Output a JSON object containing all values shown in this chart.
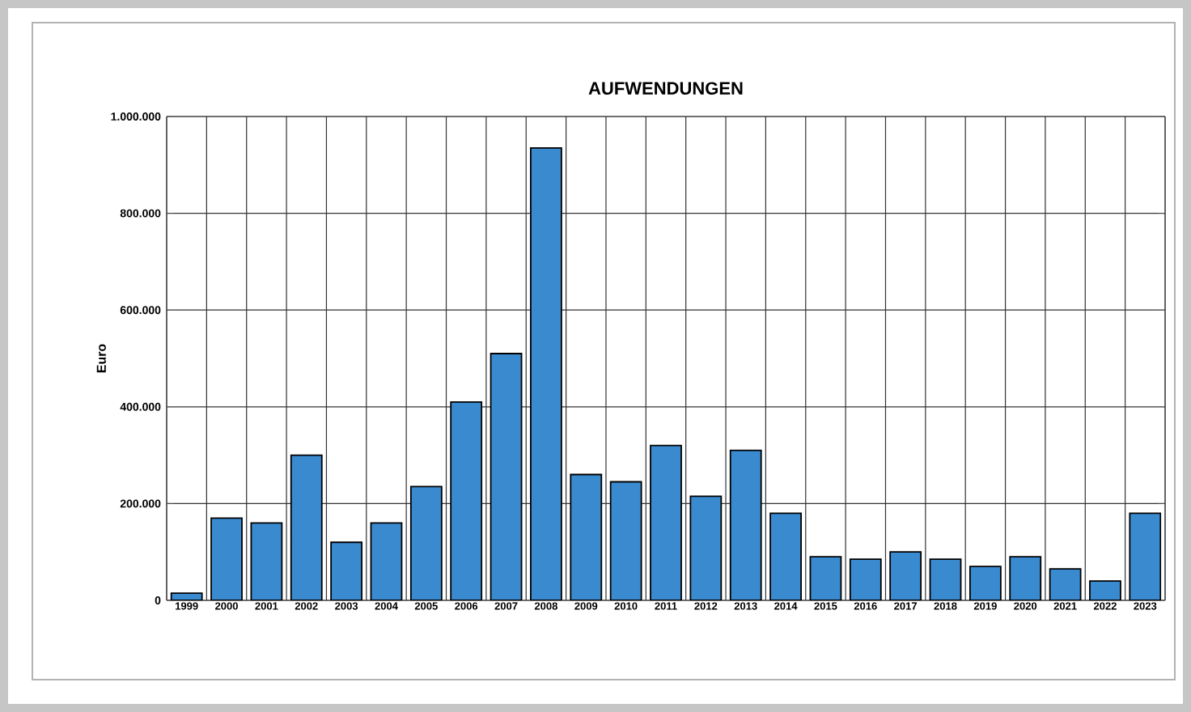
{
  "chart_data": {
    "type": "bar",
    "title": "AUFWENDUNGEN",
    "ylabel": "Euro",
    "categories": [
      "1999",
      "2000",
      "2001",
      "2002",
      "2003",
      "2004",
      "2005",
      "2006",
      "2007",
      "2008",
      "2009",
      "2010",
      "2011",
      "2012",
      "2013",
      "2014",
      "2015",
      "2016",
      "2017",
      "2018",
      "2019",
      "2020",
      "2021",
      "2022",
      "2023"
    ],
    "values": [
      15000,
      170000,
      160000,
      300000,
      120000,
      160000,
      235000,
      410000,
      510000,
      935000,
      260000,
      245000,
      320000,
      215000,
      310000,
      180000,
      90000,
      85000,
      100000,
      85000,
      70000,
      90000,
      65000,
      40000,
      180000
    ],
    "color": "#3a8ad0",
    "ylim": [
      0,
      1000000
    ],
    "yticks": [
      0,
      {
        "value": 200000,
        "label": "200.000"
      },
      {
        "value": 400000,
        "label": "400.000"
      },
      {
        "value": 600000,
        "label": "600.000"
      },
      {
        "value": 800000,
        "label": "800.000"
      },
      {
        "value": 1000000,
        "label": "1.000.000"
      }
    ],
    "grid": true
  }
}
